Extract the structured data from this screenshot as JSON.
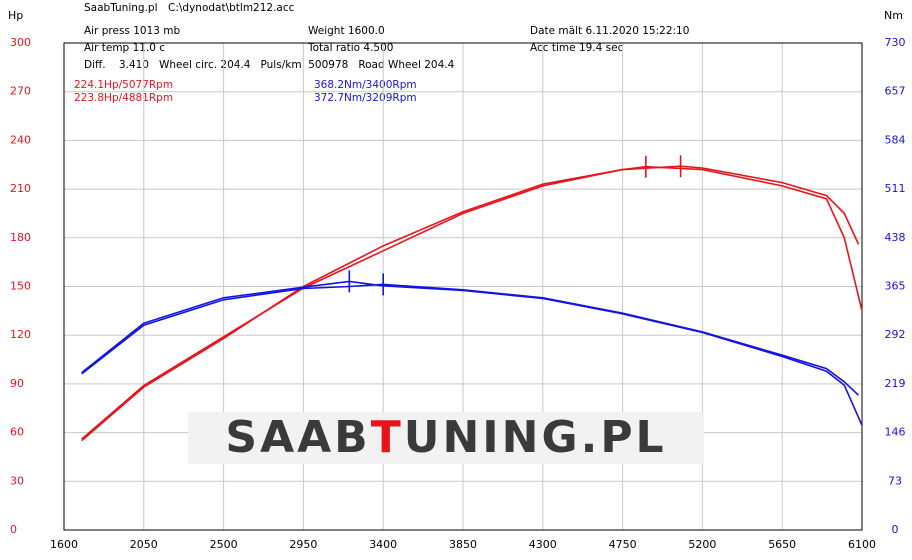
{
  "chart_data": {
    "type": "line",
    "source": "SaabTuning.pl",
    "file": "C:\\dynodat\\btlm212.acc",
    "info": [
      "Air press  1013 mb",
      "Weight  1600.0",
      "Date mält 6.11.2020 15:22:10",
      "Air temp  11.0 c",
      "Total ratio 4.500",
      "Acc time  19.4 sec",
      "Diff.    3.410   Wheel circ. 204.4   Puls/km  500978   Road Wheel 204.4"
    ],
    "y_label": "Hp",
    "y2_label": "Nm",
    "annotations_power": [
      "224.1Hp/5077Rpm",
      "223.8Hp/4881Rpm"
    ],
    "annotations_torque": [
      "368.2Nm/3400Rpm",
      "372.7Nm/3209Rpm"
    ],
    "logo": [
      "SAAB",
      "T",
      "UNING.PL"
    ],
    "xlim": [
      1600,
      6100
    ],
    "xticks": [
      1600,
      2050,
      2500,
      2950,
      3400,
      3850,
      4300,
      4750,
      5200,
      5650,
      6100
    ],
    "ylim": [
      0,
      300
    ],
    "yticks": [
      0,
      30,
      60,
      90,
      120,
      150,
      180,
      210,
      240,
      270,
      300
    ],
    "y2lim": [
      0,
      730
    ],
    "y2ticks": [
      0,
      73,
      146,
      219,
      292,
      365,
      438,
      511,
      584,
      657,
      730
    ],
    "grid": true,
    "series": [
      {
        "color": "#e8141c",
        "x": [
          1700,
          2050,
          2500,
          2950,
          3400,
          3850,
          4300,
          4750,
          5077,
          5200,
          5650,
          5900,
          6000,
          6080
        ],
        "values": [
          55,
          88,
          118,
          150,
          175,
          196,
          213,
          222,
          224.1,
          223,
          214,
          206,
          195,
          176
        ]
      },
      {
        "color": "#e8141c",
        "x": [
          1700,
          2050,
          2500,
          2950,
          3400,
          3850,
          4300,
          4750,
          4881,
          5200,
          5650,
          5900,
          6000,
          6100
        ],
        "values": [
          56,
          89,
          119,
          149,
          172,
          195,
          212,
          222,
          223.8,
          222,
          212,
          204,
          180,
          135
        ]
      },
      {
        "color": "#1414e0",
        "axis": "y2",
        "x": [
          1700,
          2050,
          2500,
          2950,
          3209,
          3400,
          3850,
          4300,
          4750,
          5200,
          5650,
          5900,
          6000,
          6080
        ],
        "values": [
          234,
          307,
          345,
          362,
          365,
          368.2,
          360,
          348,
          325,
          297,
          262,
          242,
          222,
          202
        ]
      },
      {
        "color": "#1414e0",
        "axis": "y2",
        "x": [
          1700,
          2050,
          2500,
          2950,
          3209,
          3400,
          3850,
          4300,
          4750,
          5200,
          5650,
          5900,
          6000,
          6100
        ],
        "values": [
          236,
          310,
          348,
          364,
          372.7,
          366,
          359,
          347,
          324,
          296,
          260,
          238,
          217,
          157
        ]
      }
    ]
  }
}
